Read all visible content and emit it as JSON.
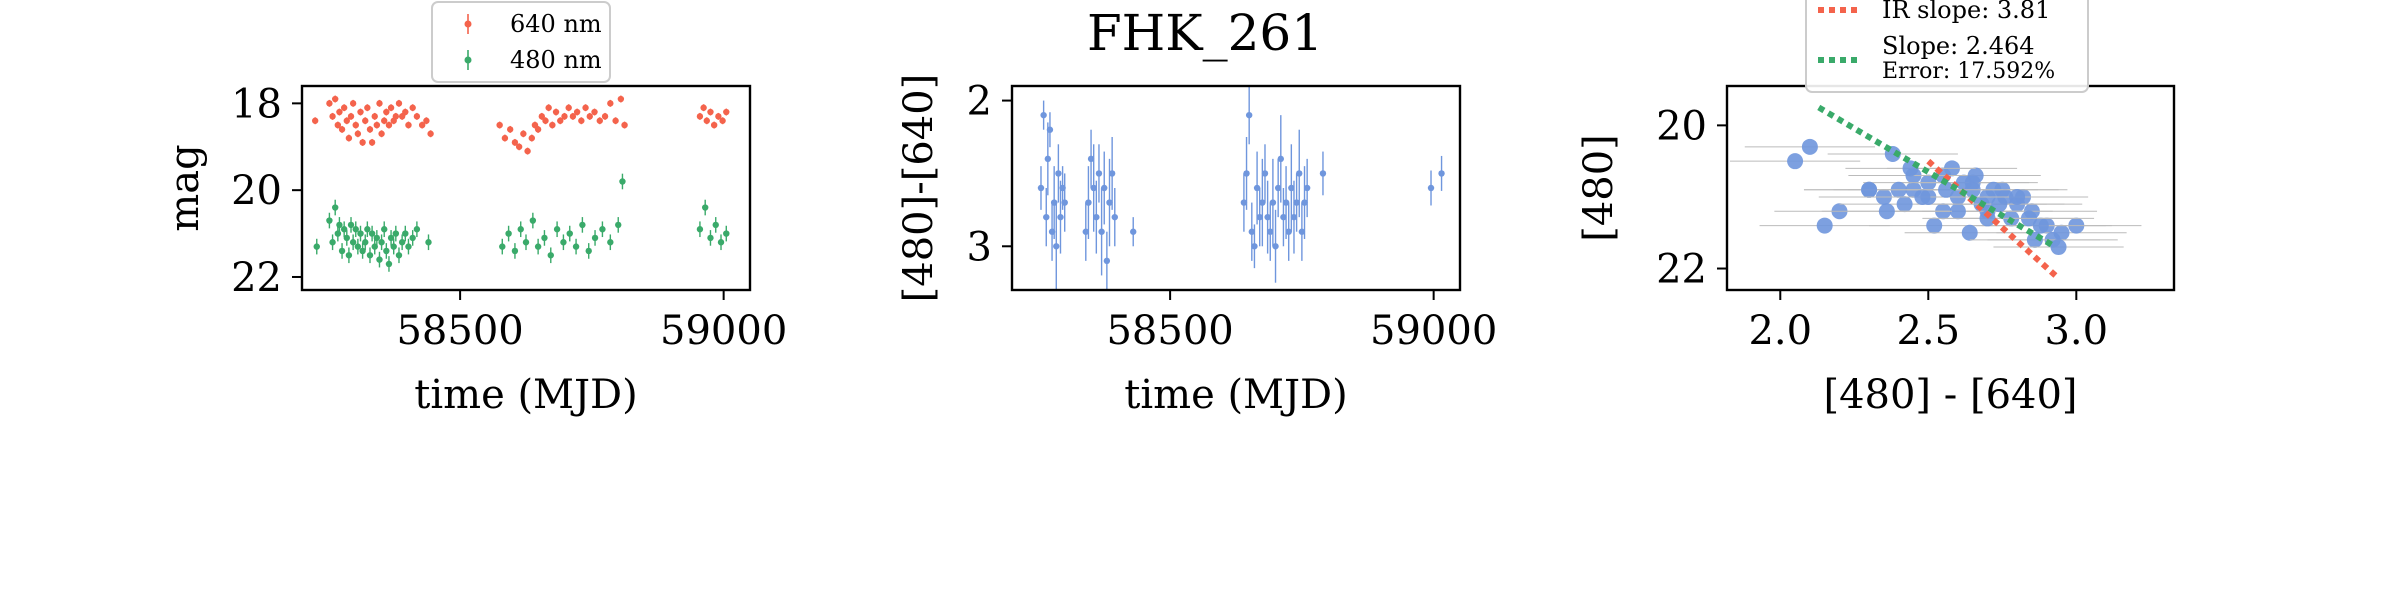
{
  "figure_title": "FHK_261",
  "chart_data": [
    {
      "type": "scatter",
      "panel": "light-curve",
      "xlabel": "time (MJD)",
      "ylabel": "mag",
      "xlim": [
        58200,
        59050
      ],
      "ylim": [
        22.3,
        17.6
      ],
      "y_inverted": true,
      "xticks": [
        58500,
        59000
      ],
      "yticks": [
        18,
        20,
        22
      ],
      "legend": {
        "location": "top-center-outside",
        "entries": [
          "640 nm",
          "480 nm"
        ]
      },
      "series": [
        {
          "name": "640 nm",
          "color": "#f4634c",
          "x": [
            58225,
            58252,
            58258,
            58263,
            58268,
            58271,
            58276,
            58280,
            58285,
            58289,
            58293,
            58297,
            58302,
            58306,
            58311,
            58315,
            58320,
            58324,
            58329,
            58333,
            58338,
            58342,
            58347,
            58351,
            58356,
            58360,
            58365,
            58369,
            58374,
            58378,
            58384,
            58390,
            58396,
            58402,
            58410,
            58418,
            58428,
            58436,
            58444,
            58575,
            58585,
            58595,
            58604,
            58612,
            58620,
            58628,
            58636,
            58642,
            58648,
            58655,
            58662,
            58668,
            58675,
            58682,
            58690,
            58698,
            58706,
            58714,
            58722,
            58730,
            58738,
            58746,
            58755,
            58765,
            58775,
            58785,
            58795,
            58805,
            58812,
            58955,
            58962,
            58968,
            58975,
            58982,
            58990,
            58998,
            59005
          ],
          "y": [
            18.4,
            18.0,
            18.3,
            17.9,
            18.5,
            18.2,
            18.6,
            18.1,
            18.4,
            18.8,
            18.3,
            18.0,
            18.5,
            18.7,
            18.2,
            18.9,
            18.4,
            18.1,
            18.6,
            18.9,
            18.3,
            18.5,
            18.0,
            18.7,
            18.4,
            18.2,
            18.5,
            18.1,
            18.4,
            18.3,
            18.0,
            18.3,
            18.2,
            18.5,
            18.1,
            18.3,
            18.5,
            18.4,
            18.7,
            18.5,
            18.8,
            18.6,
            18.9,
            19.0,
            18.7,
            19.1,
            18.8,
            18.5,
            18.6,
            18.3,
            18.4,
            18.1,
            18.5,
            18.2,
            18.4,
            18.3,
            18.1,
            18.3,
            18.2,
            18.4,
            18.1,
            18.3,
            18.2,
            18.4,
            18.3,
            18.0,
            18.4,
            17.9,
            18.5,
            18.3,
            18.1,
            18.4,
            18.2,
            18.5,
            18.3,
            18.4,
            18.2
          ],
          "y_err": 0.08
        },
        {
          "name": "480 nm",
          "color": "#3aaa6a",
          "x": [
            58228,
            58252,
            58258,
            58263,
            58268,
            58271,
            58276,
            58280,
            58285,
            58289,
            58293,
            58297,
            58302,
            58306,
            58311,
            58315,
            58320,
            58324,
            58329,
            58333,
            58338,
            58342,
            58347,
            58351,
            58356,
            58360,
            58365,
            58369,
            58374,
            58378,
            58384,
            58390,
            58396,
            58402,
            58410,
            58418,
            58440,
            58580,
            58592,
            58604,
            58615,
            58625,
            58638,
            58648,
            58660,
            58672,
            58684,
            58696,
            58708,
            58720,
            58732,
            58744,
            58756,
            58770,
            58785,
            58800,
            58808,
            58955,
            58965,
            58975,
            58985,
            58995,
            59005
          ],
          "y": [
            21.3,
            20.7,
            21.2,
            20.4,
            21.0,
            20.8,
            21.4,
            20.9,
            21.1,
            21.5,
            20.8,
            21.2,
            20.9,
            21.3,
            21.0,
            21.4,
            21.2,
            20.9,
            21.5,
            21.0,
            21.3,
            21.1,
            21.6,
            21.2,
            20.9,
            21.4,
            21.7,
            21.1,
            21.3,
            21.0,
            21.5,
            21.2,
            21.0,
            21.3,
            21.1,
            20.9,
            21.2,
            21.3,
            21.0,
            21.4,
            20.9,
            21.2,
            20.7,
            21.3,
            21.1,
            21.5,
            20.9,
            21.2,
            21.0,
            21.3,
            20.8,
            21.4,
            21.1,
            20.9,
            21.2,
            20.8,
            19.8,
            20.9,
            20.4,
            21.1,
            20.8,
            21.2,
            21.0
          ],
          "y_err": 0.18
        }
      ]
    },
    {
      "type": "scatter",
      "panel": "color-curve",
      "xlabel": "time (MJD)",
      "ylabel": "[480]-[640]",
      "xlim": [
        58200,
        59050
      ],
      "ylim": [
        3.3,
        1.9
      ],
      "y_inverted": true,
      "xticks": [
        58500,
        59000
      ],
      "yticks": [
        2,
        3
      ],
      "series": [
        {
          "color": "#6f96dd",
          "x": [
            58255,
            58260,
            58265,
            58268,
            58272,
            58276,
            58280,
            58284,
            58288,
            58292,
            58296,
            58300,
            58340,
            58345,
            58350,
            58355,
            58360,
            58365,
            58370,
            58375,
            58380,
            58385,
            58390,
            58395,
            58430,
            58640,
            58645,
            58650,
            58655,
            58660,
            58665,
            58670,
            58675,
            58680,
            58685,
            58690,
            58695,
            58700,
            58705,
            58710,
            58715,
            58720,
            58725,
            58730,
            58735,
            58740,
            58745,
            58750,
            58755,
            58760,
            58790,
            58995,
            59015
          ],
          "y": [
            2.6,
            2.1,
            2.8,
            2.4,
            2.2,
            2.9,
            2.7,
            3.0,
            2.5,
            2.8,
            2.6,
            2.7,
            2.9,
            2.7,
            2.4,
            2.6,
            2.8,
            2.5,
            2.9,
            2.6,
            3.1,
            2.7,
            2.5,
            2.8,
            2.9,
            2.7,
            2.5,
            2.1,
            2.9,
            3.0,
            2.6,
            2.8,
            2.7,
            2.5,
            2.8,
            2.9,
            2.7,
            3.0,
            2.6,
            2.4,
            2.8,
            2.7,
            2.9,
            2.6,
            2.8,
            2.7,
            2.5,
            2.9,
            2.7,
            2.6,
            2.5,
            2.6,
            2.5
          ],
          "y_err": [
            0.15,
            0.1,
            0.2,
            0.25,
            0.12,
            0.2,
            0.25,
            0.3,
            0.2,
            0.25,
            0.15,
            0.2,
            0.2,
            0.25,
            0.2,
            0.3,
            0.25,
            0.2,
            0.3,
            0.25,
            0.2,
            0.3,
            0.25,
            0.2,
            0.1,
            0.2,
            0.25,
            0.2,
            0.2,
            0.15,
            0.25,
            0.2,
            0.3,
            0.2,
            0.25,
            0.2,
            0.3,
            0.25,
            0.2,
            0.3,
            0.2,
            0.25,
            0.2,
            0.3,
            0.25,
            0.2,
            0.3,
            0.2,
            0.25,
            0.2,
            0.15,
            0.12,
            0.12
          ]
        }
      ]
    },
    {
      "type": "scatter",
      "panel": "color-magnitude",
      "xlabel": "[480] - [640]",
      "ylabel": "[480]",
      "xlim": [
        1.82,
        3.33
      ],
      "ylim": [
        22.3,
        19.45
      ],
      "y_inverted": true,
      "xticks": [
        2.0,
        2.5,
        3.0
      ],
      "yticks": [
        20,
        22
      ],
      "legend": {
        "location": "top-right",
        "entries": [
          "IR slope: 3.81",
          "Slope: 2.464",
          "Error: 17.592%"
        ]
      },
      "fit_lines": [
        {
          "name": "IR slope: 3.81",
          "color": "#f4634c",
          "style": "dotted",
          "x": [
            2.5,
            2.93
          ],
          "y": [
            20.5,
            22.1
          ]
        },
        {
          "name": "Slope: 2.464",
          "color": "#3aaa6a",
          "style": "dotted",
          "x": [
            2.13,
            2.93
          ],
          "y": [
            19.75,
            21.7
          ]
        }
      ],
      "series": [
        {
          "color": "#6f96dd",
          "x": [
            2.05,
            2.1,
            2.15,
            2.2,
            2.3,
            2.38,
            2.42,
            2.45,
            2.5,
            2.55,
            2.6,
            2.65,
            2.7,
            2.75,
            2.8,
            2.85,
            2.9,
            2.95,
            3.0,
            2.35,
            2.45,
            2.55,
            2.62,
            2.68,
            2.72,
            2.78,
            2.82,
            2.88,
            2.92,
            2.4,
            2.5,
            2.58,
            2.65,
            2.7,
            2.76,
            2.84,
            2.52,
            2.6,
            2.66,
            2.74,
            2.8,
            2.3,
            2.36,
            2.44,
            2.48,
            2.56,
            2.64,
            2.7,
            2.86,
            2.94
          ],
          "y": [
            20.5,
            20.3,
            21.4,
            21.2,
            20.9,
            20.4,
            21.1,
            20.9,
            20.8,
            20.7,
            21.0,
            20.8,
            21.0,
            20.9,
            21.1,
            21.2,
            21.4,
            21.5,
            21.4,
            21.0,
            20.7,
            21.2,
            20.8,
            21.1,
            20.9,
            21.3,
            21.0,
            21.4,
            21.6,
            20.9,
            21.0,
            20.6,
            20.9,
            21.2,
            21.0,
            21.3,
            21.4,
            21.2,
            20.7,
            21.1,
            21.0,
            20.9,
            21.2,
            20.6,
            21.0,
            20.9,
            21.5,
            21.3,
            21.6,
            21.7
          ],
          "x_err": 0.22
        }
      ]
    }
  ]
}
